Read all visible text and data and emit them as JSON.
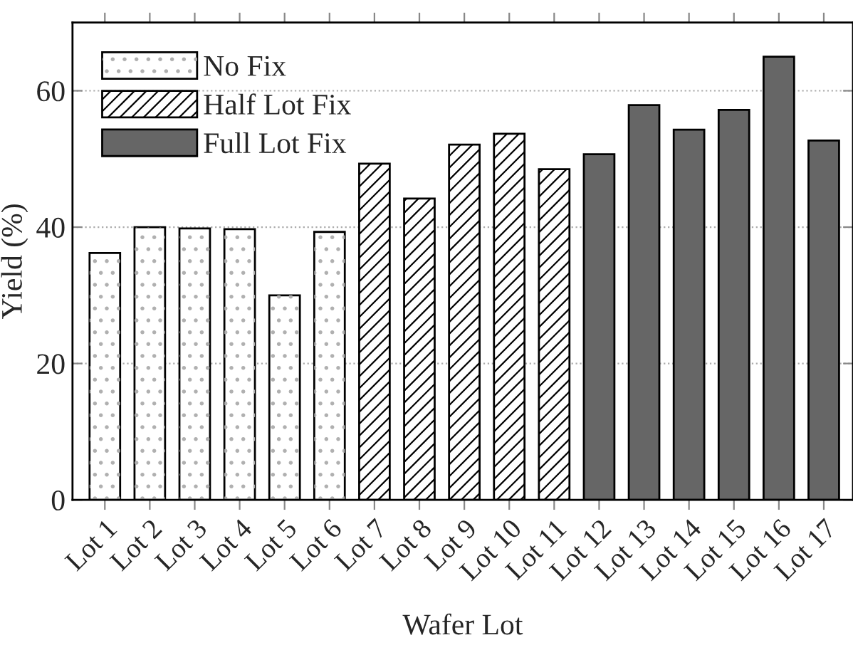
{
  "chart_data": {
    "type": "bar",
    "xlabel": "Wafer Lot",
    "ylabel": "Yield (%)",
    "categories": [
      "Lot 1",
      "Lot 2",
      "Lot 3",
      "Lot 4",
      "Lot 5",
      "Lot 6",
      "Lot 7",
      "Lot 8",
      "Lot 9",
      "Lot 10",
      "Lot 11",
      "Lot 12",
      "Lot 13",
      "Lot 14",
      "Lot 15",
      "Lot 16",
      "Lot 17"
    ],
    "series": [
      {
        "name": "No Fix",
        "color": "#ffffff",
        "values": [
          36.2,
          40.0,
          39.8,
          39.7,
          30.0,
          39.3,
          null,
          null,
          null,
          null,
          null,
          null,
          null,
          null,
          null,
          null,
          null
        ]
      },
      {
        "name": "Half Lot Fix",
        "color": "#ffffff",
        "values": [
          null,
          null,
          null,
          null,
          null,
          null,
          49.3,
          44.2,
          52.1,
          53.7,
          48.5,
          null,
          null,
          null,
          null,
          null,
          null
        ]
      },
      {
        "name": "Full Lot Fix",
        "color": "#666666",
        "values": [
          null,
          null,
          null,
          null,
          null,
          null,
          null,
          null,
          null,
          null,
          null,
          50.7,
          57.9,
          54.3,
          57.2,
          65.0,
          52.7
        ]
      }
    ],
    "ylim": [
      0,
      70
    ],
    "yticks": [
      0,
      20,
      40,
      60
    ],
    "grid": "y",
    "legend": "top left"
  }
}
